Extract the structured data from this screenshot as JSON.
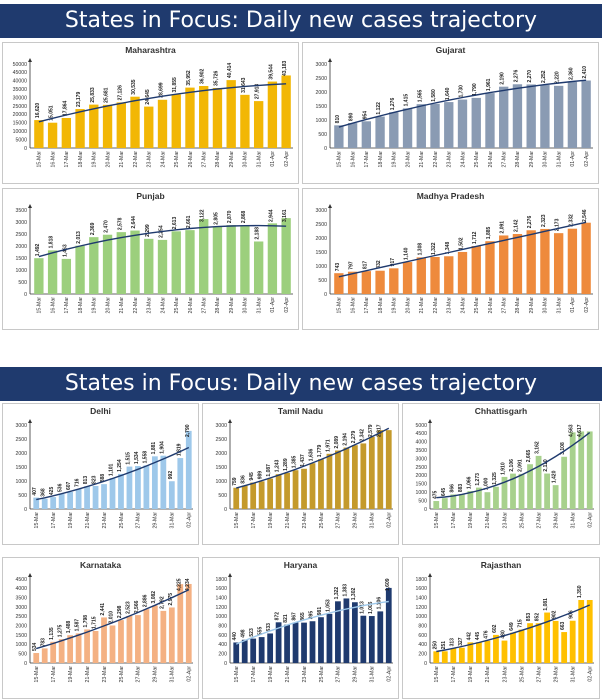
{
  "slides": [
    {
      "banner": "States in Focus: Daily new cases trajectory"
    },
    {
      "banner": "States in Focus: Daily new cases trajectory"
    }
  ],
  "chart_data": [
    {
      "type": "bar",
      "title": "Maharashtra",
      "color": "#f2b705",
      "trend": "#1f3a6e",
      "categories": [
        "15-Mar",
        "16-Mar",
        "17-Mar",
        "18-Mar",
        "19-Mar",
        "20-Mar",
        "21-Mar",
        "22-Mar",
        "23-Mar",
        "24-Mar",
        "25-Mar",
        "26-Mar",
        "27-Mar",
        "28-Mar",
        "29-Mar",
        "30-Mar",
        "31-Mar",
        "01-Apr",
        "02-Apr"
      ],
      "values": [
        16620,
        15051,
        17864,
        23179,
        25833,
        25681,
        27126,
        30535,
        24645,
        28699,
        31855,
        35952,
        36902,
        35726,
        40414,
        31643,
        27918,
        39544,
        43183
      ],
      "labels": [
        "16,620",
        "15,051",
        "17,864",
        "23,179",
        "25,833",
        "25,681",
        "27,126",
        "30,535",
        "24,645",
        "28,699",
        "31,855",
        "35,952",
        "36,902",
        "35,726",
        "40,414",
        "31,643",
        "27,918",
        "39,544",
        "43,183"
      ],
      "ylim": [
        0,
        50000
      ],
      "yticks": [
        0,
        5000,
        10000,
        15000,
        20000,
        25000,
        30000,
        35000,
        40000,
        45000,
        50000
      ],
      "tick_step": 1
    },
    {
      "type": "bar",
      "title": "Gujarat",
      "color": "#8a9bb3",
      "trend": "#1f3a6e",
      "categories": [
        "15-Mar",
        "16-Mar",
        "17-Mar",
        "18-Mar",
        "19-Mar",
        "20-Mar",
        "21-Mar",
        "22-Mar",
        "23-Mar",
        "24-Mar",
        "25-Mar",
        "26-Mar",
        "27-Mar",
        "28-Mar",
        "29-Mar",
        "30-Mar",
        "31-Mar",
        "01-Apr",
        "02-Apr"
      ],
      "values": [
        810,
        890,
        954,
        1122,
        1276,
        1415,
        1565,
        1580,
        1640,
        1730,
        1790,
        1961,
        2190,
        2276,
        2270,
        2252,
        2220,
        2360,
        2410
      ],
      "labels": [
        "810",
        "890",
        "954",
        "1,122",
        "1,276",
        "1,415",
        "1,565",
        "1,580",
        "1,640",
        "1,730",
        "1,790",
        "1,961",
        "2,190",
        "2,276",
        "2,270",
        "2,252",
        "2,220",
        "2,360",
        "2,410"
      ],
      "ylim": [
        0,
        3000
      ],
      "yticks": [
        0,
        500,
        1000,
        1500,
        2000,
        2500,
        3000
      ],
      "tick_step": 1
    },
    {
      "type": "bar",
      "title": "Punjab",
      "color": "#9ccf7d",
      "trend": "#1f3a6e",
      "categories": [
        "15-Mar",
        "16-Mar",
        "17-Mar",
        "18-Mar",
        "19-Mar",
        "20-Mar",
        "21-Mar",
        "22-Mar",
        "23-Mar",
        "24-Mar",
        "25-Mar",
        "26-Mar",
        "27-Mar",
        "28-Mar",
        "29-Mar",
        "30-Mar",
        "31-Mar",
        "01-Apr",
        "02-Apr"
      ],
      "values": [
        1492,
        1818,
        1463,
        2013,
        2369,
        2470,
        2578,
        2644,
        2299,
        2254,
        2613,
        2661,
        3122,
        2805,
        2870,
        2868,
        2188,
        2944,
        3161
      ],
      "labels": [
        "1,492",
        "1,818",
        "1,463",
        "2,013",
        "2,369",
        "2,470",
        "2,578",
        "2,644",
        "2,299",
        "2,254",
        "2,613",
        "2,661",
        "3,122",
        "2,805",
        "2,870",
        "2,868",
        "2,188",
        "2,944",
        "3,161"
      ],
      "ylim": [
        0,
        3500
      ],
      "yticks": [
        0,
        500,
        1000,
        1500,
        2000,
        2500,
        3000,
        3500
      ],
      "tick_step": 1
    },
    {
      "type": "bar",
      "title": "Madhya Pradesh",
      "color": "#ee8a3c",
      "trend": "#1f3a6e",
      "categories": [
        "15-Mar",
        "16-Mar",
        "17-Mar",
        "18-Mar",
        "19-Mar",
        "20-Mar",
        "21-Mar",
        "22-Mar",
        "23-Mar",
        "24-Mar",
        "25-Mar",
        "26-Mar",
        "27-Mar",
        "28-Mar",
        "29-Mar",
        "30-Mar",
        "31-Mar",
        "01-Apr",
        "02-Apr"
      ],
      "values": [
        743,
        797,
        817,
        832,
        917,
        1140,
        1308,
        1322,
        1348,
        1502,
        1712,
        1885,
        2091,
        2142,
        2276,
        2323,
        2173,
        2332,
        2546
      ],
      "labels": [
        "743",
        "797",
        "817",
        "832",
        "917",
        "1,140",
        "1,308",
        "1,322",
        "1,348",
        "1,502",
        "1,712",
        "1,885",
        "2,091",
        "2,142",
        "2,276",
        "2,323",
        "2,173",
        "2,332",
        "2,546"
      ],
      "ylim": [
        0,
        3000
      ],
      "yticks": [
        0,
        500,
        1000,
        1500,
        2000,
        2500,
        3000
      ],
      "tick_step": 1
    },
    {
      "type": "bar",
      "title": "Delhi",
      "color": "#9ec8ea",
      "trend": "#1f3a6e",
      "categories": [
        "15-Mar",
        "16-Mar",
        "17-Mar",
        "18-Mar",
        "19-Mar",
        "20-Mar",
        "21-Mar",
        "22-Mar",
        "23-Mar",
        "24-Mar",
        "25-Mar",
        "26-Mar",
        "27-Mar",
        "28-Mar",
        "29-Mar",
        "30-Mar",
        "31-Mar",
        "01-Apr",
        "02-Apr"
      ],
      "values": [
        407,
        368,
        425,
        536,
        607,
        716,
        813,
        823,
        888,
        1101,
        1254,
        1515,
        1534,
        1558,
        1881,
        1904,
        992,
        1819,
        2790
      ],
      "labels": [
        "407",
        "368",
        "425",
        "536",
        "607",
        "716",
        "813",
        "823",
        "888",
        "1,101",
        "1,254",
        "1,515",
        "1,534",
        "1,558",
        "1,881",
        "1,904",
        "992",
        "1,819",
        "2,790"
      ],
      "ylim": [
        0,
        3000
      ],
      "yticks": [
        0,
        500,
        1000,
        1500,
        2000,
        2500,
        3000
      ],
      "tick_step": 2
    },
    {
      "type": "bar",
      "title": "Tamil Nadu",
      "color": "#c49a2c",
      "trend": "#1f3a6e",
      "categories": [
        "15-Mar",
        "16-Mar",
        "17-Mar",
        "18-Mar",
        "19-Mar",
        "20-Mar",
        "21-Mar",
        "22-Mar",
        "23-Mar",
        "24-Mar",
        "25-Mar",
        "26-Mar",
        "27-Mar",
        "28-Mar",
        "29-Mar",
        "30-Mar",
        "31-Mar",
        "01-Apr",
        "02-Apr"
      ],
      "values": [
        759,
        836,
        945,
        989,
        1087,
        1243,
        1289,
        1385,
        1437,
        1636,
        1779,
        1971,
        2089,
        2194,
        2279,
        2342,
        2579,
        2817,
        2817
      ],
      "labels": [
        "759",
        "836",
        "945",
        "989",
        "1,087",
        "1,243",
        "1,289",
        "1,385",
        "1,437",
        "1,636",
        "1,779",
        "1,971",
        "2,089",
        "2,194",
        "2,279",
        "2,342",
        "2,579",
        "2,817",
        ""
      ],
      "ylim": [
        0,
        3000
      ],
      "yticks": [
        0,
        500,
        1000,
        1500,
        2000,
        2500,
        3000
      ],
      "tick_step": 2
    },
    {
      "type": "bar",
      "title": "Chhattisgarh",
      "color": "#a8d18d",
      "trend": "#1f3a6e",
      "categories": [
        "15-Mar",
        "16-Mar",
        "17-Mar",
        "18-Mar",
        "19-Mar",
        "20-Mar",
        "21-Mar",
        "22-Mar",
        "23-Mar",
        "24-Mar",
        "25-Mar",
        "26-Mar",
        "27-Mar",
        "28-Mar",
        "29-Mar",
        "30-Mar",
        "31-Mar",
        "01-Apr",
        "02-Apr"
      ],
      "values": [
        475,
        645,
        866,
        883,
        1066,
        1273,
        1000,
        1325,
        1910,
        2106,
        2091,
        2665,
        3162,
        2110,
        1420,
        3108,
        4563,
        4617,
        4617
      ],
      "labels": [
        "475",
        "645",
        "866",
        "883",
        "1,066",
        "1,273",
        "1,000",
        "1,325",
        "1,910",
        "2,106",
        "2,091",
        "2,665",
        "3,162",
        "2,110",
        "1,420",
        "3,108",
        "4,563",
        "4,617",
        ""
      ],
      "ylim": [
        0,
        5000
      ],
      "yticks": [
        0,
        500,
        1000,
        1500,
        2000,
        2500,
        3000,
        3500,
        4000,
        4500,
        5000
      ],
      "tick_step": 2
    },
    {
      "type": "bar",
      "title": "Karnataka",
      "color": "#f4b183",
      "trend": "#1f3a6e",
      "categories": [
        "15-Mar",
        "16-Mar",
        "17-Mar",
        "18-Mar",
        "19-Mar",
        "20-Mar",
        "21-Mar",
        "22-Mar",
        "23-Mar",
        "24-Mar",
        "25-Mar",
        "26-Mar",
        "27-Mar",
        "28-Mar",
        "29-Mar",
        "30-Mar",
        "31-Mar",
        "01-Apr",
        "02-Apr"
      ],
      "values": [
        534,
        783,
        1135,
        1275,
        1488,
        1587,
        1798,
        1715,
        2441,
        2010,
        2298,
        2523,
        2566,
        2886,
        3082,
        2792,
        2975,
        4225,
        4234
      ],
      "labels": [
        "534",
        "783",
        "1,135",
        "1,275",
        "1,488",
        "1,587",
        "1,798",
        "1,715",
        "2,441",
        "2,010",
        "2,298",
        "2,523",
        "2,566",
        "2,886",
        "3,082",
        "2,792",
        "2,975",
        "4,225",
        "4,234"
      ],
      "ylim": [
        0,
        4500
      ],
      "yticks": [
        0,
        500,
        1000,
        1500,
        2000,
        2500,
        3000,
        3500,
        4000,
        4500
      ],
      "tick_step": 2
    },
    {
      "type": "bar",
      "title": "Haryana",
      "color": "#1f3a6e",
      "trend": "#9ec8ea",
      "categories": [
        "15-Mar",
        "16-Mar",
        "17-Mar",
        "18-Mar",
        "19-Mar",
        "20-Mar",
        "21-Mar",
        "22-Mar",
        "23-Mar",
        "24-Mar",
        "25-Mar",
        "26-Mar",
        "27-Mar",
        "28-Mar",
        "29-Mar",
        "30-Mar",
        "31-Mar",
        "01-Apr",
        "02-Apr"
      ],
      "values": [
        440,
        498,
        523,
        555,
        633,
        872,
        821,
        867,
        865,
        895,
        981,
        1053,
        1322,
        1383,
        1302,
        1013,
        1006,
        1106,
        1609
      ],
      "labels": [
        "440",
        "498",
        "523",
        "555",
        "633",
        "872",
        "821",
        "867",
        "865",
        "895",
        "981",
        "1,053",
        "1,322",
        "1,383",
        "1,302",
        "1,013",
        "1,006",
        "1,106",
        "1,609"
      ],
      "ylim": [
        0,
        1800
      ],
      "yticks": [
        0,
        200,
        400,
        600,
        800,
        1000,
        1200,
        1400,
        1600,
        1800
      ],
      "tick_step": 2
    },
    {
      "type": "bar",
      "title": "Rajasthan",
      "color": "#ffc000",
      "trend": "#1f3a6e",
      "categories": [
        "15-Mar",
        "16-Mar",
        "17-Mar",
        "18-Mar",
        "19-Mar",
        "20-Mar",
        "21-Mar",
        "22-Mar",
        "23-Mar",
        "24-Mar",
        "25-Mar",
        "26-Mar",
        "27-Mar",
        "28-Mar",
        "29-Mar",
        "30-Mar",
        "31-Mar",
        "01-Apr",
        "02-Apr"
      ],
      "values": [
        250,
        251,
        313,
        327,
        442,
        445,
        476,
        602,
        480,
        649,
        715,
        853,
        852,
        1081,
        902,
        663,
        906,
        1350,
        1350
      ],
      "labels": [
        "250",
        "251",
        "313",
        "327",
        "442",
        "445",
        "476",
        "602",
        "480",
        "649",
        "715",
        "853",
        "852",
        "1,081",
        "902",
        "663",
        "906",
        "1,350",
        ""
      ],
      "ylim": [
        0,
        1800
      ],
      "yticks": [
        0,
        200,
        400,
        600,
        800,
        1000,
        1200,
        1400,
        1600,
        1800
      ],
      "tick_step": 2
    }
  ]
}
